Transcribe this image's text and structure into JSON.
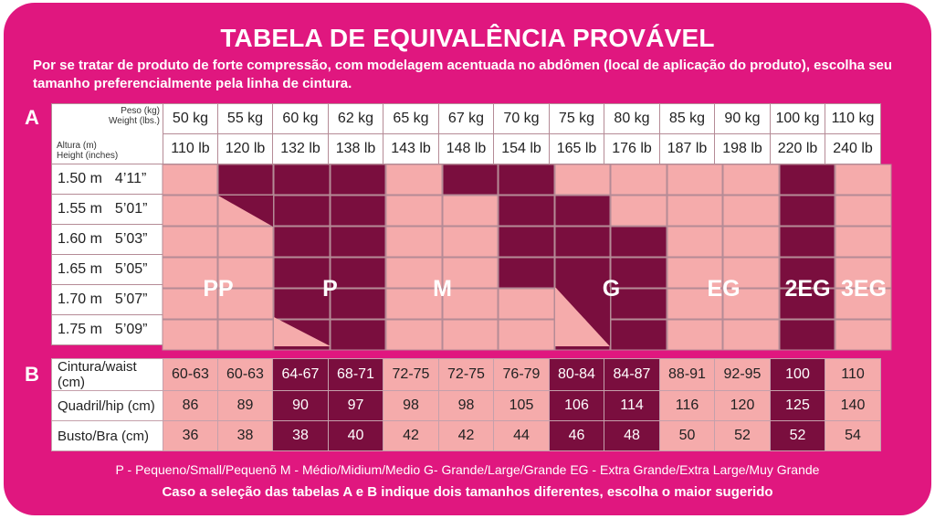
{
  "title": "TABELA DE EQUIVALÊNCIA PROVÁVEL",
  "intro": "Por se tratar de produto de forte compressão, com modelagem acentuada no abdômen (local de aplicação do produto), escolha seu tamanho preferencialmente pela linha de cintura.",
  "section_a": "A",
  "section_b": "B",
  "corner": {
    "weight_label": "Peso (kg)",
    "weight_lbs_label": "Weight (lbs.)",
    "height_label": "Altura (m)",
    "height_in_label": "Height (inches)"
  },
  "weights_kg": [
    "50 kg",
    "55 kg",
    "60 kg",
    "62 kg",
    "65 kg",
    "67 kg",
    "70 kg",
    "75 kg",
    "80 kg",
    "85 kg",
    "90 kg",
    "100 kg",
    "110 kg"
  ],
  "weights_lb": [
    "110 lb",
    "120 lb",
    "132 lb",
    "138 lb",
    "143 lb",
    "148 lb",
    "154 lb",
    "165 lb",
    "176 lb",
    "187 lb",
    "198 lb",
    "220 lb",
    "240 lb"
  ],
  "heights": [
    {
      "m": "1.50 m",
      "ft": "4’11”"
    },
    {
      "m": "1.55 m",
      "ft": "5’01”"
    },
    {
      "m": "1.60 m",
      "ft": "5’03”"
    },
    {
      "m": "1.65 m",
      "ft": "5’05”"
    },
    {
      "m": "1.70 m",
      "ft": "5’07”"
    },
    {
      "m": "1.75 m",
      "ft": "5’09”"
    }
  ],
  "size_labels": [
    "PP",
    "P",
    "M",
    "G",
    "EG",
    "2EG",
    "3EG"
  ],
  "table_b": {
    "rows": [
      {
        "label": "Cintura/waist (cm)",
        "values": [
          "60-63",
          "60-63",
          "64-67",
          "68-71",
          "72-75",
          "72-75",
          "76-79",
          "80-84",
          "84-87",
          "88-91",
          "92-95",
          "100",
          "110"
        ]
      },
      {
        "label": "Quadril/hip (cm)",
        "values": [
          "86",
          "89",
          "90",
          "97",
          "98",
          "98",
          "105",
          "106",
          "114",
          "116",
          "120",
          "125",
          "140"
        ]
      },
      {
        "label": "Busto/Bra (cm)",
        "values": [
          "36",
          "38",
          "38",
          "40",
          "42",
          "42",
          "44",
          "46",
          "48",
          "50",
          "52",
          "52",
          "54"
        ]
      }
    ],
    "dark_columns": [
      2,
      3,
      7,
      8,
      11
    ]
  },
  "legend": "P - Pequeno/Small/Pequenõ  M - Médio/Midium/Medio  G- Grande/Large/Grande  EG - Extra Grande/Extra Large/Muy Grande",
  "footnote": "Caso a seleção das tabelas A e B indique dois tamanhos diferentes, escolha o maior sugerido",
  "colors": {
    "background": "#e0177f",
    "light_cell": "#f5abab",
    "dark_cell": "#7a0e3e"
  }
}
